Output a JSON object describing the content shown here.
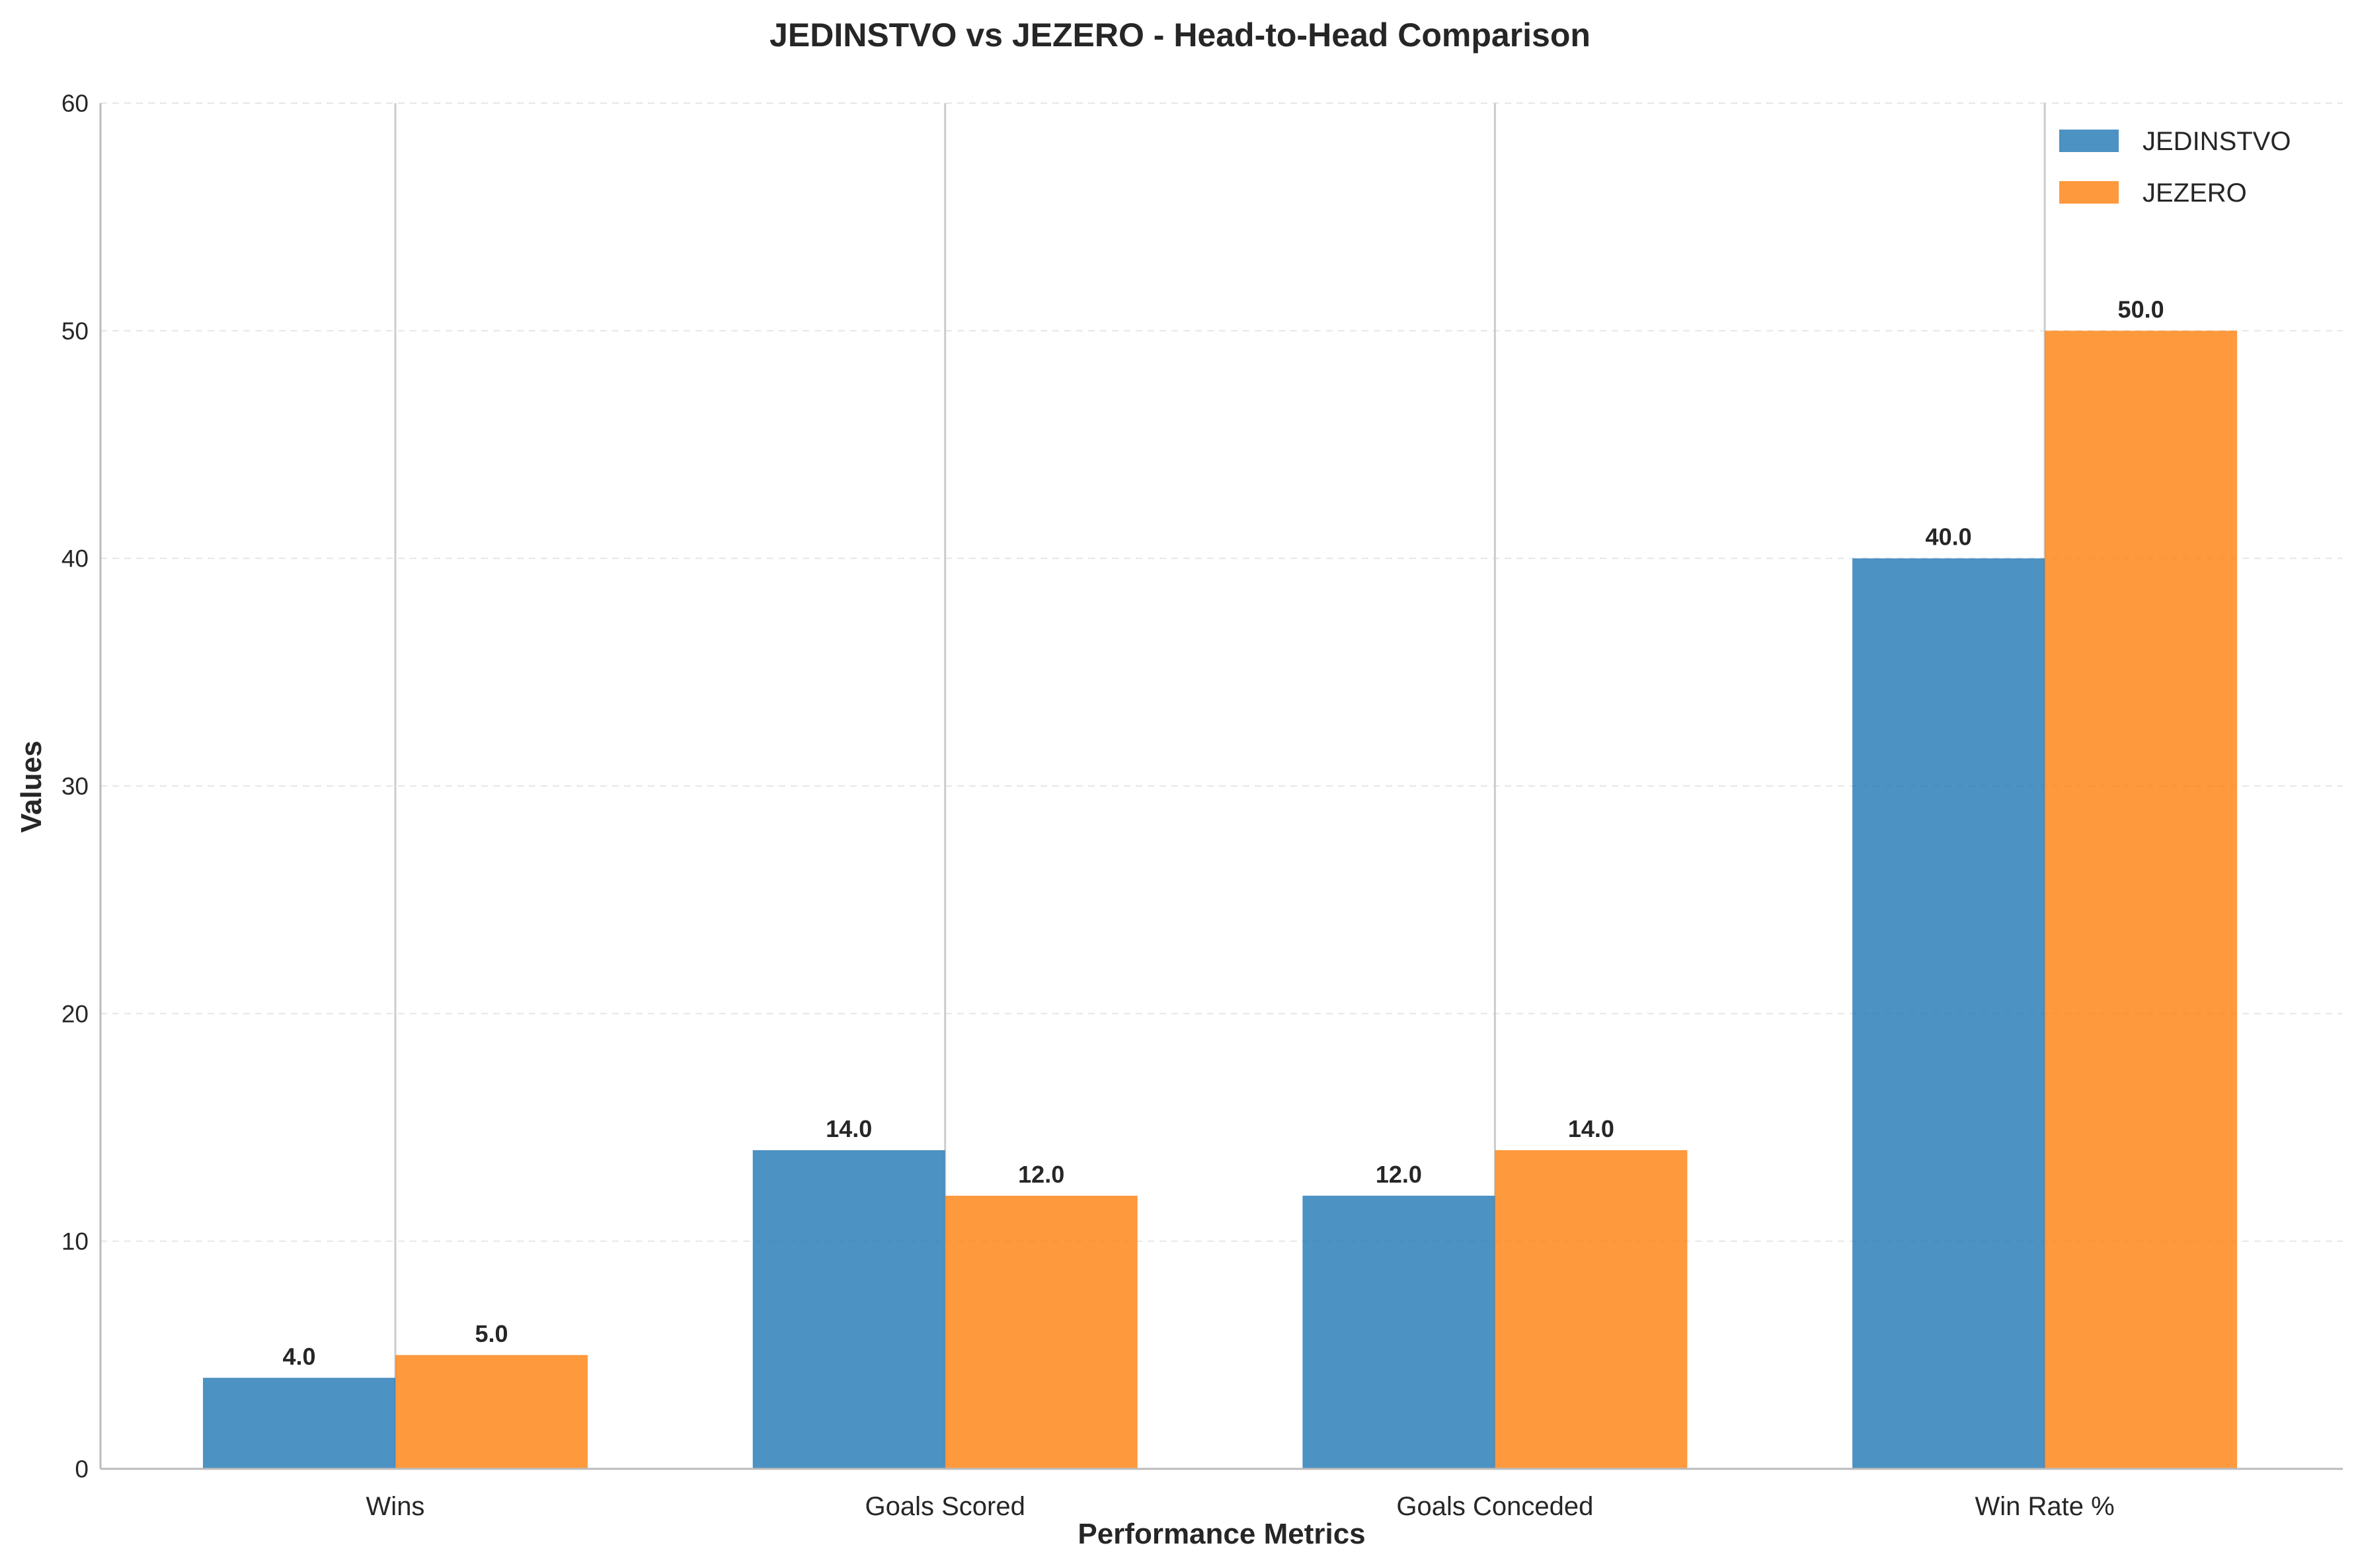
{
  "chart_data": {
    "type": "bar",
    "title": "JEDINSTVO vs JEZERO - Head-to-Head Comparison",
    "xlabel": "Performance Metrics",
    "ylabel": "Values",
    "categories": [
      "Wins",
      "Goals Scored",
      "Goals Conceded",
      "Win Rate %"
    ],
    "series": [
      {
        "name": "JEDINSTVO",
        "values": [
          4.0,
          14.0,
          12.0,
          40.0
        ],
        "color": "#1f77b4"
      },
      {
        "name": "JEZERO",
        "values": [
          5.0,
          12.0,
          14.0,
          50.0
        ],
        "color": "#ff7f0e"
      }
    ],
    "ylim": [
      0,
      60
    ],
    "yticks": [
      0,
      10,
      20,
      30,
      40,
      50,
      60
    ],
    "grid": true,
    "legend_position": "top-right",
    "value_label_decimals": 1
  }
}
